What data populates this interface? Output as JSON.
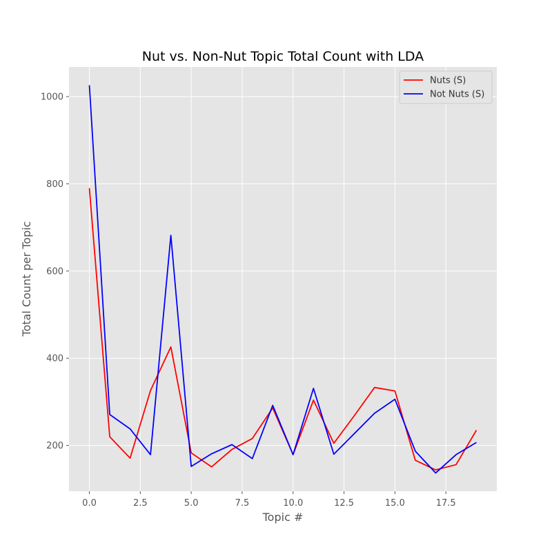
{
  "chart_data": {
    "type": "line",
    "title": "Nut vs. Non-Nut Topic Total Count with LDA",
    "xlabel": "Topic #",
    "ylabel": "Total Count per Topic",
    "xlim": [
      -1.0,
      20.0
    ],
    "ylim": [
      95,
      1068
    ],
    "x_ticks": [
      0.0,
      2.5,
      5.0,
      7.5,
      10.0,
      12.5,
      15.0,
      17.5
    ],
    "x_tick_labels": [
      "0.0",
      "2.5",
      "5.0",
      "7.5",
      "10.0",
      "12.5",
      "15.0",
      "17.5"
    ],
    "y_ticks": [
      200,
      400,
      600,
      800,
      1000
    ],
    "y_tick_labels": [
      "200",
      "400",
      "600",
      "800",
      "1000"
    ],
    "grid": true,
    "legend_position": "top-right",
    "series": [
      {
        "name": "Nuts (S)",
        "color": "#ff0000",
        "x": [
          0,
          1,
          2,
          3,
          4,
          5,
          6,
          7,
          8,
          9,
          10,
          11,
          12,
          13,
          14,
          15,
          16,
          17,
          18,
          19
        ],
        "values": [
          790,
          220,
          171,
          326,
          426,
          183,
          151,
          191,
          216,
          286,
          179,
          304,
          205,
          268,
          333,
          325,
          166,
          144,
          156,
          235
        ]
      },
      {
        "name": "Not Nuts (S)",
        "color": "#0000ff",
        "x": [
          0,
          1,
          2,
          3,
          4,
          5,
          6,
          7,
          8,
          9,
          10,
          11,
          12,
          13,
          14,
          15,
          16,
          17,
          18,
          19
        ],
        "values": [
          1026,
          271,
          238,
          179,
          682,
          152,
          181,
          202,
          170,
          292,
          179,
          331,
          180,
          227,
          274,
          306,
          187,
          137,
          179,
          207
        ]
      }
    ]
  }
}
